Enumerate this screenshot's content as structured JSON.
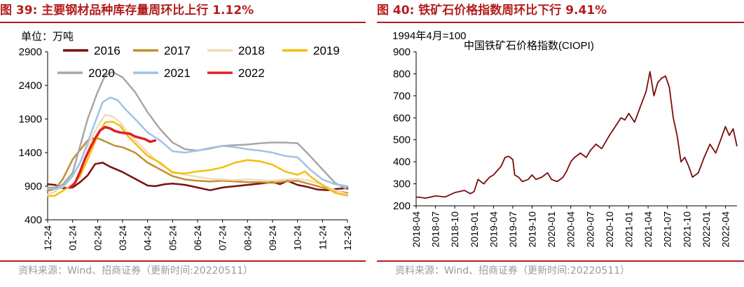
{
  "left": {
    "fig_label": "图 39:",
    "title": "主要钢材品种库存量周环比上行 1.12%",
    "source": "资料来源：Wind、招商证券（更新时间:20220511）"
  },
  "right": {
    "fig_label": "图 40:",
    "title": "铁矿石价格指数周环比下行 9.41%",
    "source": "资料来源：Wind、招商证券（更新时间:20220511）"
  },
  "chart_data": [
    {
      "type": "line",
      "title": "主要钢材品种库存量周环比上行 1.12%",
      "unit_label": "单位：万吨",
      "xlabel": "",
      "ylabel": "万吨",
      "ylim": [
        400,
        2900
      ],
      "yticks": [
        400,
        900,
        1400,
        1900,
        2400,
        2900
      ],
      "x_tick_labels": [
        "12-24",
        "01-24",
        "02-24",
        "03-24",
        "04-24",
        "05-24",
        "06-24",
        "07-24",
        "08-24",
        "09-24",
        "10-24",
        "11-24",
        "12-24"
      ],
      "x_range": [
        0,
        12
      ],
      "x_unit": "months from 12-24",
      "legend_position": "top",
      "series": [
        {
          "name": "2016",
          "color": "#7b0f0f",
          "width": 2.5,
          "x": [
            0,
            0.3,
            0.6,
            1.0,
            1.3,
            1.6,
            1.9,
            2.2,
            2.5,
            3.0,
            3.5,
            4.0,
            4.3,
            4.7,
            5.0,
            5.5,
            6.0,
            6.5,
            7.0,
            7.5,
            8.0,
            8.5,
            9.0,
            9.3,
            9.6,
            10.0,
            10.4,
            10.8,
            11.2,
            11.6,
            12.0
          ],
          "values": [
            930,
            920,
            870,
            880,
            960,
            1060,
            1230,
            1250,
            1190,
            1110,
            1010,
            910,
            900,
            930,
            940,
            920,
            880,
            840,
            880,
            900,
            920,
            940,
            960,
            930,
            980,
            920,
            890,
            850,
            840,
            860,
            870
          ]
        },
        {
          "name": "2017",
          "color": "#c09032",
          "width": 2.5,
          "x": [
            0,
            0.3,
            0.6,
            1.0,
            1.3,
            1.6,
            1.9,
            2.1,
            2.4,
            2.7,
            3.0,
            3.5,
            4.0,
            4.5,
            5.0,
            5.5,
            6.0,
            6.5,
            7.0,
            7.5,
            8.0,
            8.5,
            9.0,
            9.5,
            10.0,
            10.5,
            11.0,
            11.5,
            12.0
          ],
          "values": [
            830,
            860,
            1000,
            1300,
            1440,
            1580,
            1620,
            1600,
            1550,
            1500,
            1480,
            1400,
            1250,
            1150,
            1050,
            1000,
            980,
            970,
            980,
            970,
            960,
            960,
            950,
            970,
            980,
            930,
            880,
            830,
            800
          ]
        },
        {
          "name": "2018",
          "color": "#efdcb8",
          "width": 2.5,
          "x": [
            0,
            0.3,
            0.6,
            1.0,
            1.3,
            1.6,
            2.0,
            2.3,
            2.6,
            2.9,
            3.2,
            3.6,
            4.0,
            4.5,
            5.0,
            5.5,
            6.0,
            6.5,
            7.0,
            7.5,
            8.0,
            8.5,
            9.0,
            9.5,
            10.0,
            10.5,
            11.0,
            11.5,
            12.0
          ],
          "values": [
            780,
            820,
            930,
            1060,
            1250,
            1500,
            1790,
            1960,
            1940,
            1850,
            1700,
            1550,
            1400,
            1230,
            1120,
            1070,
            1040,
            1010,
            1000,
            990,
            1000,
            990,
            980,
            1000,
            1010,
            980,
            920,
            840,
            780
          ]
        },
        {
          "name": "2019",
          "color": "#f5be0a",
          "width": 2.5,
          "x": [
            0,
            0.3,
            0.6,
            1.0,
            1.3,
            1.6,
            2.0,
            2.3,
            2.6,
            2.9,
            3.2,
            3.6,
            4.0,
            4.5,
            5.0,
            5.5,
            6.0,
            6.5,
            7.0,
            7.5,
            8.0,
            8.5,
            9.0,
            9.5,
            10.0,
            10.3,
            10.6,
            11.0,
            11.5,
            12.0
          ],
          "values": [
            750,
            760,
            830,
            920,
            1050,
            1300,
            1650,
            1850,
            1860,
            1800,
            1650,
            1500,
            1350,
            1250,
            1100,
            1090,
            1120,
            1140,
            1180,
            1250,
            1290,
            1270,
            1220,
            1120,
            1070,
            1120,
            1020,
            920,
            800,
            760
          ]
        },
        {
          "name": "2020",
          "color": "#a7a7a7",
          "width": 2.5,
          "x": [
            0,
            0.3,
            0.6,
            1.0,
            1.3,
            1.6,
            2.0,
            2.3,
            2.6,
            3.0,
            3.5,
            4.0,
            4.5,
            5.0,
            5.5,
            6.0,
            6.5,
            7.0,
            7.5,
            8.0,
            8.5,
            9.0,
            9.5,
            10.0,
            10.5,
            11.0,
            11.5,
            12.0
          ],
          "values": [
            880,
            880,
            920,
            1100,
            1500,
            1900,
            2300,
            2550,
            2600,
            2520,
            2300,
            2000,
            1750,
            1550,
            1450,
            1430,
            1460,
            1500,
            1510,
            1520,
            1540,
            1550,
            1550,
            1540,
            1350,
            1150,
            950,
            850
          ]
        },
        {
          "name": "2021",
          "color": "#9ec3e6",
          "width": 2.5,
          "x": [
            0,
            0.3,
            0.6,
            1.0,
            1.3,
            1.6,
            2.0,
            2.2,
            2.5,
            2.8,
            3.1,
            3.5,
            4.0,
            4.5,
            5.0,
            5.5,
            6.0,
            6.5,
            7.0,
            7.5,
            8.0,
            8.5,
            9.0,
            9.5,
            10.0,
            10.5,
            11.0,
            11.5,
            12.0
          ],
          "values": [
            860,
            860,
            880,
            1050,
            1250,
            1550,
            1950,
            2150,
            2220,
            2180,
            2050,
            1900,
            1700,
            1580,
            1420,
            1400,
            1430,
            1470,
            1500,
            1480,
            1450,
            1430,
            1400,
            1350,
            1330,
            1150,
            1000,
            930,
            900
          ]
        },
        {
          "name": "2022",
          "color": "#e02020",
          "width": 3.5,
          "x": [
            0.9,
            1.1,
            1.3,
            1.5,
            1.7,
            1.9,
            2.1,
            2.3,
            2.5,
            2.7,
            2.9,
            3.1,
            3.3,
            3.5,
            3.7,
            3.9,
            4.1,
            4.3
          ],
          "values": [
            880,
            950,
            1120,
            1310,
            1470,
            1610,
            1730,
            1780,
            1760,
            1720,
            1700,
            1690,
            1680,
            1640,
            1620,
            1600,
            1560,
            1580
          ]
        }
      ]
    },
    {
      "type": "line",
      "title": "铁矿石价格指数周环比下行 9.41%",
      "axis_unit_note": "1994年4月=100",
      "inner_title": "中国铁矿石价格指数(CIOPI)",
      "xlabel": "",
      "ylabel": "",
      "ylim": [
        200,
        900
      ],
      "yticks": [
        200,
        300,
        400,
        500,
        600,
        700,
        800,
        900
      ],
      "x_tick_labels": [
        "2018-04",
        "2018-07",
        "2018-10",
        "2019-01",
        "2019-04",
        "2019-07",
        "2019-10",
        "2020-01",
        "2020-04",
        "2020-07",
        "2020-10",
        "2021-01",
        "2021-04",
        "2021-07",
        "2021-10",
        "2022-01",
        "2022-04"
      ],
      "x_range": [
        0,
        16.6
      ],
      "x_unit": "quarters from 2018-04",
      "legend_position": "none",
      "series": [
        {
          "name": "中国铁矿石价格指数(CIOPI)",
          "color": "#7a0c0c",
          "width": 1.8,
          "x": [
            0,
            0.5,
            1.0,
            1.5,
            2.0,
            2.5,
            2.8,
            3.0,
            3.2,
            3.5,
            3.8,
            4.0,
            4.2,
            4.4,
            4.6,
            4.8,
            5.0,
            5.1,
            5.3,
            5.5,
            5.8,
            6.0,
            6.2,
            6.5,
            6.8,
            7.0,
            7.3,
            7.6,
            7.8,
            8.0,
            8.2,
            8.5,
            8.8,
            9.0,
            9.3,
            9.6,
            10.0,
            10.3,
            10.6,
            10.8,
            11.0,
            11.3,
            11.6,
            11.9,
            12.1,
            12.3,
            12.5,
            12.7,
            12.9,
            13.1,
            13.3,
            13.5,
            13.7,
            13.9,
            14.1,
            14.3,
            14.6,
            14.9,
            15.2,
            15.5,
            15.8,
            16.0,
            16.2,
            16.4,
            16.6
          ],
          "values": [
            240,
            235,
            245,
            240,
            260,
            270,
            255,
            265,
            320,
            300,
            330,
            340,
            360,
            380,
            420,
            425,
            410,
            340,
            330,
            310,
            320,
            340,
            320,
            330,
            350,
            320,
            310,
            330,
            360,
            400,
            420,
            440,
            420,
            450,
            480,
            460,
            520,
            560,
            600,
            590,
            620,
            580,
            650,
            720,
            810,
            700,
            760,
            780,
            790,
            740,
            600,
            520,
            400,
            420,
            380,
            330,
            350,
            420,
            480,
            440,
            510,
            560,
            520,
            550,
            470
          ]
        }
      ]
    }
  ]
}
